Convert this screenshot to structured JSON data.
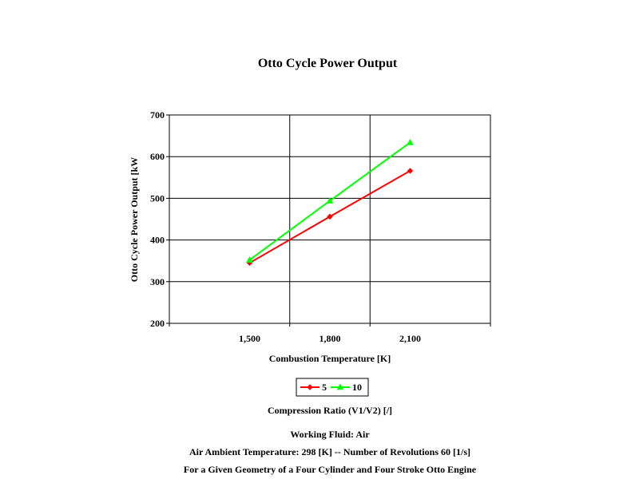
{
  "chart_data": {
    "type": "line",
    "title": "Otto Cycle Power Output",
    "xlabel": "Combustion Temperature [K]",
    "ylabel": "Otto Cycle Power Output [kW",
    "x": [
      1500,
      1800,
      2100
    ],
    "x_tick_labels": [
      "1,500",
      "1,800",
      "2,100"
    ],
    "xlim": [
      1200,
      2400
    ],
    "ylim": [
      200,
      700
    ],
    "y_ticks": [
      200,
      300,
      400,
      500,
      600,
      700
    ],
    "y_tick_labels": [
      "200",
      "300",
      "400",
      "500",
      "600",
      "700"
    ],
    "grid": true,
    "legend_position": "bottom",
    "series": [
      {
        "name": "5",
        "color": "#ff0000",
        "marker": "diamond",
        "values": [
          345,
          456,
          566
        ]
      },
      {
        "name": "10",
        "color": "#00ff00",
        "marker": "triangle",
        "values": [
          352,
          494,
          634
        ]
      }
    ]
  },
  "notes": {
    "legend_caption": "Compression Ratio (V1/V2) [/]",
    "working_fluid": "Working Fluid:  Air",
    "conditions": "Air Ambient Temperature:  298 [K] -- Number of Revolutions 60 [1/s]",
    "geometry": "For a Given Geometry of a Four Cylinder and Four Stroke Otto Engine"
  }
}
